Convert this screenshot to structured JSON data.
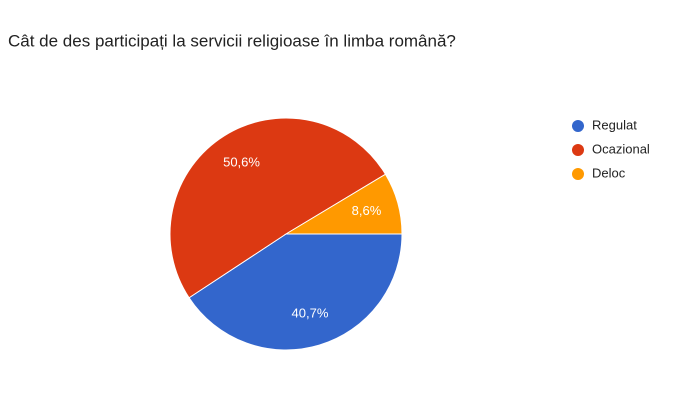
{
  "chart_data": {
    "type": "pie",
    "title": "Cât de des participați la servicii religioase în limba română?",
    "categories": [
      "Regulat",
      "Ocazional",
      "Deloc"
    ],
    "values": [
      40.7,
      50.6,
      8.6
    ],
    "value_labels": [
      "40,7%",
      "50,6%",
      "8,6%"
    ],
    "colors": [
      "#3366cc",
      "#dc3912",
      "#ff9900"
    ],
    "legend": "right"
  }
}
